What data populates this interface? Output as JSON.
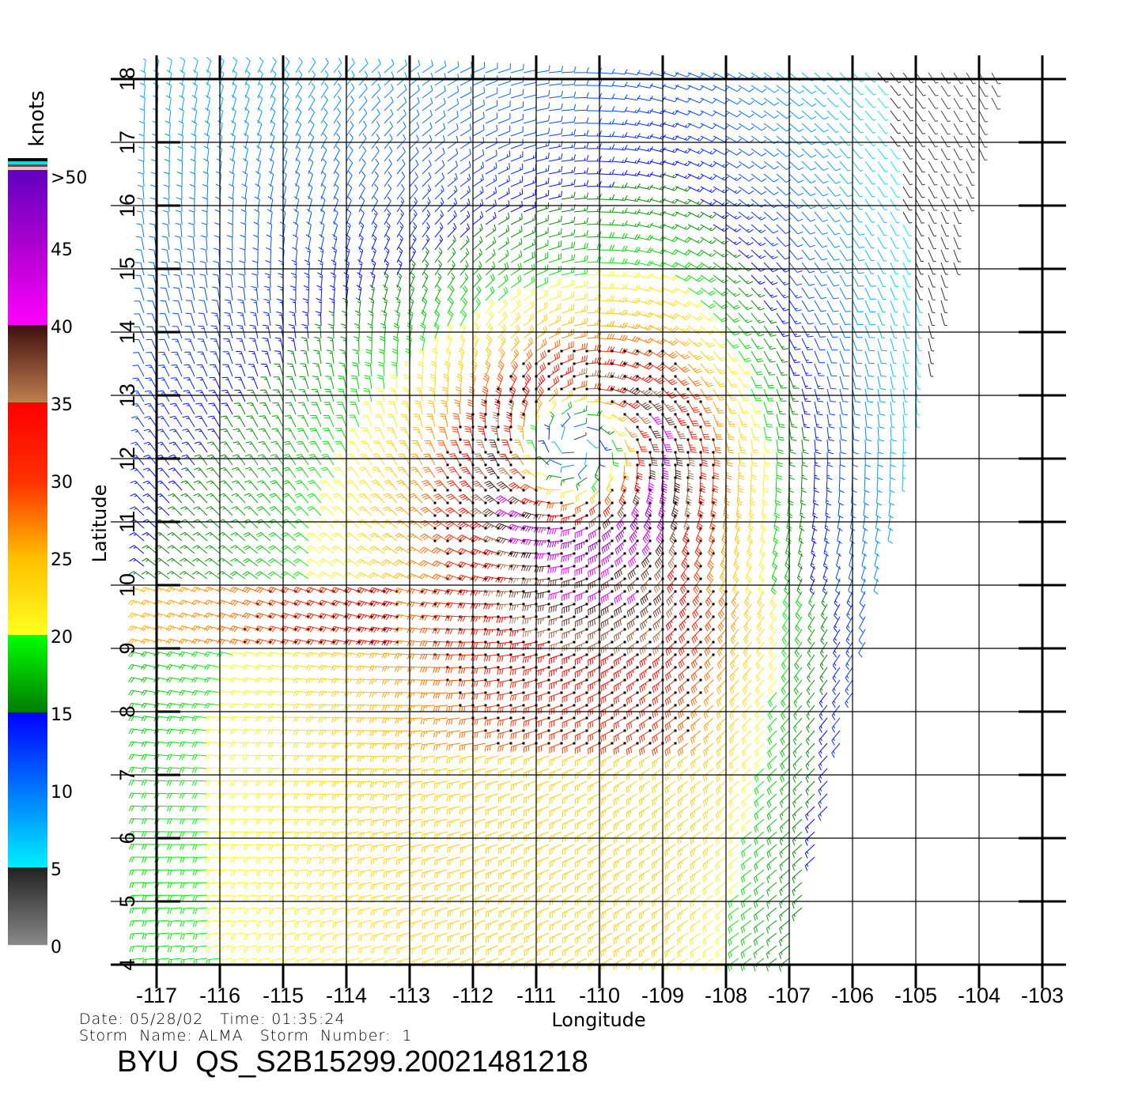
{
  "chart_data": {
    "type": "vector-field",
    "title": "BYU QS_S2B15299.20021481218",
    "xlabel": "Longitude",
    "ylabel": "Latitude",
    "xlim": [
      -117,
      -103
    ],
    "ylim": [
      4,
      18
    ],
    "x_ticks": [
      "-117",
      "-116",
      "-115",
      "-114",
      "-113",
      "-112",
      "-111",
      "-110",
      "-109",
      "-108",
      "-107",
      "-106",
      "-105",
      "-104",
      "-103"
    ],
    "y_ticks": [
      "4",
      "5",
      "6",
      "7",
      "8",
      "9",
      "10",
      "11",
      "12",
      "13",
      "14",
      "15",
      "16",
      "17",
      "18"
    ],
    "grid": true,
    "storm_center": {
      "lon": -110.3,
      "lat": 12.0
    },
    "max_wind_knots": 50,
    "colorbar": {
      "unit": "knots",
      "tick_labels": [
        "0",
        "5",
        "10",
        "15",
        "20",
        "25",
        "30",
        "35",
        "40",
        "45",
        ">50"
      ],
      "stops": [
        {
          "knots": 0,
          "color": "#8a8a8a"
        },
        {
          "knots": 5,
          "color": "#222222"
        },
        {
          "knots": 5.01,
          "color": "#00f0ff"
        },
        {
          "knots": 10,
          "color": "#0078ff"
        },
        {
          "knots": 15,
          "color": "#0000ff"
        },
        {
          "knots": 15.01,
          "color": "#007a00"
        },
        {
          "knots": 20,
          "color": "#00ff00"
        },
        {
          "knots": 20.01,
          "color": "#ffff20"
        },
        {
          "knots": 25,
          "color": "#ffc000"
        },
        {
          "knots": 30,
          "color": "#ff3000"
        },
        {
          "knots": 35,
          "color": "#ff0000"
        },
        {
          "knots": 35.01,
          "color": "#c08050"
        },
        {
          "knots": 40,
          "color": "#401010"
        },
        {
          "knots": 40.01,
          "color": "#ff00ff"
        },
        {
          "knots": 45,
          "color": "#b000d0"
        },
        {
          "knots": 50,
          "color": "#6000c0"
        }
      ]
    }
  },
  "info": {
    "line1": "Date: 05/28/02   Time: 01:35:24",
    "line2": "Storm  Name: ALMA   Storm  Number:  1",
    "title": "BYU  QS_S2B15299.20021481218"
  }
}
